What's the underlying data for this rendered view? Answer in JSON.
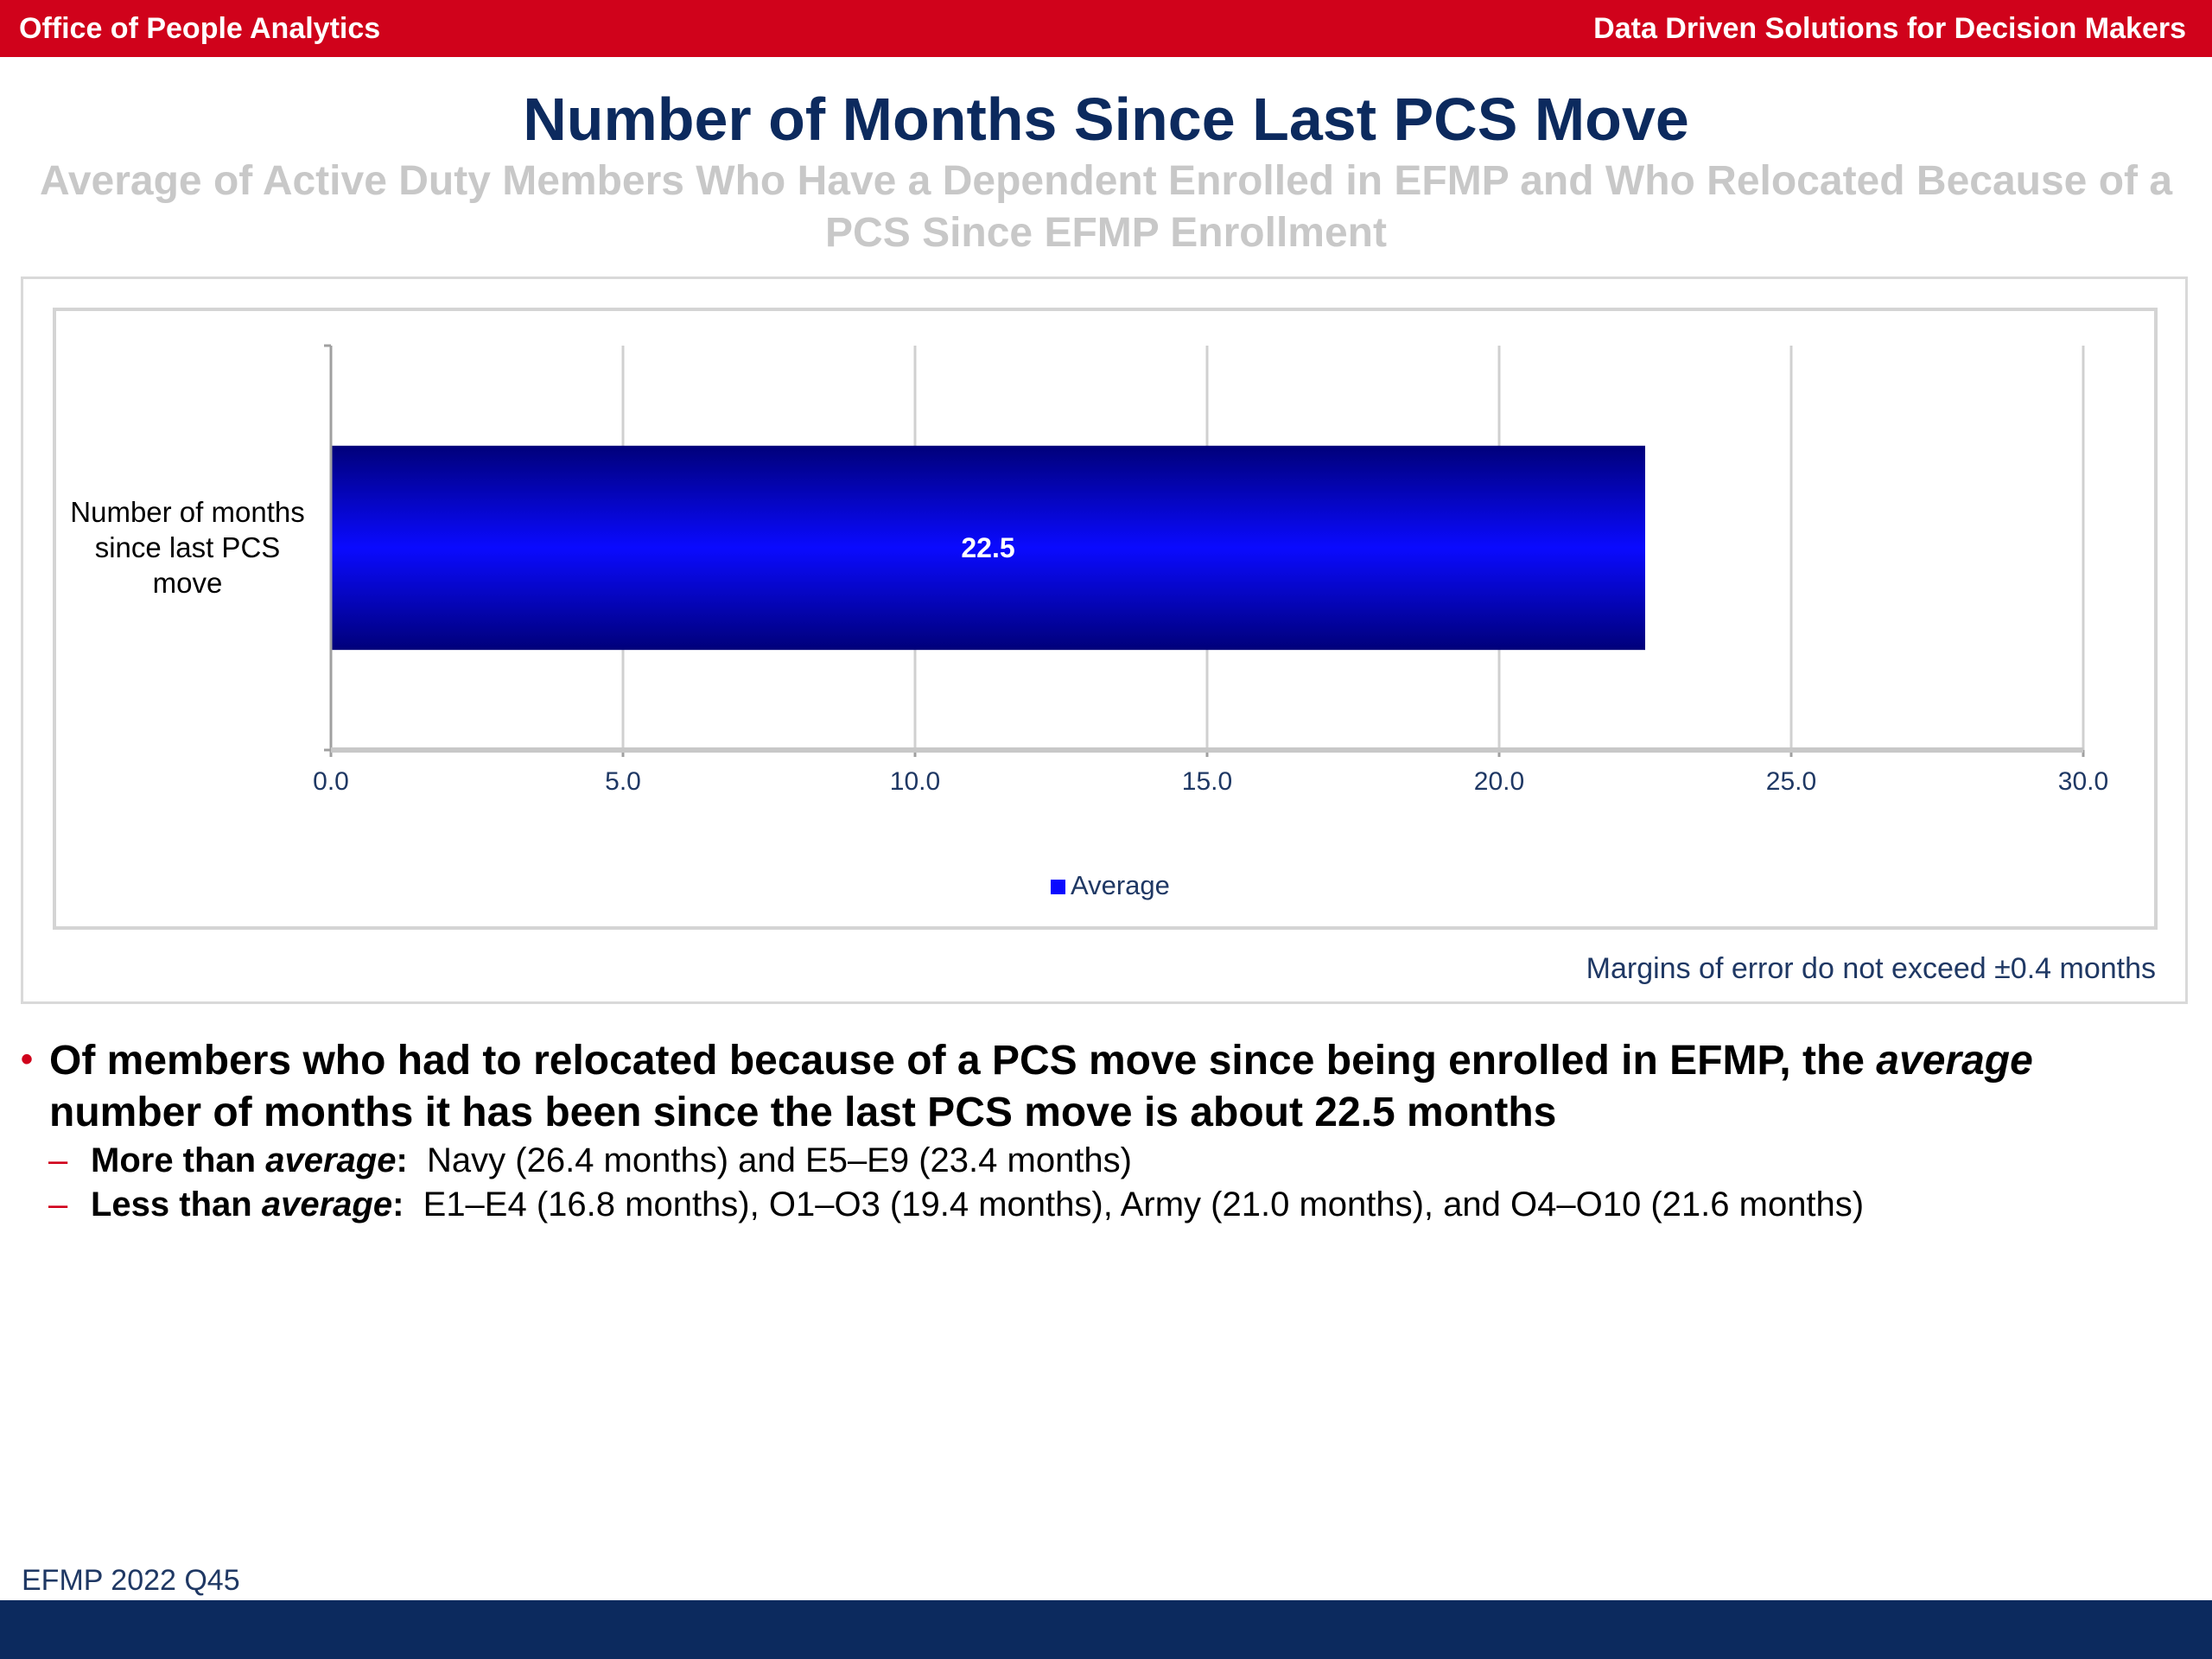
{
  "header": {
    "left": "Office of People Analytics",
    "right": "Data Driven Solutions for Decision Makers"
  },
  "title": "Number of Months Since Last PCS Move",
  "subtitle": "Average of Active Duty Members Who Have a Dependent Enrolled in EFMP and Who Relocated Because of a PCS Since EFMP Enrollment",
  "chart_data": {
    "type": "bar",
    "orientation": "horizontal",
    "categories": [
      "Number of months since last PCS move"
    ],
    "series": [
      {
        "name": "Average",
        "values": [
          22.5
        ],
        "data_labels": [
          "22.5"
        ]
      }
    ],
    "xlim": [
      0,
      30
    ],
    "x_ticks": [
      "0.0",
      "5.0",
      "10.0",
      "15.0",
      "20.0",
      "25.0",
      "30.0"
    ],
    "grid": true,
    "legend_position": "bottom",
    "colors": {
      "bar_edge": "#00007a",
      "bar_center": "#0a0aff",
      "axis_text": "#1f3864",
      "grid": "#d0d0d0"
    }
  },
  "note": "Margins of error do not exceed ±0.4 months",
  "bullets": {
    "main": {
      "text1": "Of members who had to relocated because of a PCS move since being enrolled in EFMP, the ",
      "em": "average",
      "text2": " number of months it has been since the last PCS move is about 22.5 months"
    },
    "sub": [
      {
        "lead": "More than ",
        "em": "average",
        "colon": ":",
        "text": "  Navy (26.4 months) and E5–E9 (23.4 months)"
      },
      {
        "lead": "Less than ",
        "em": "average",
        "colon": ":",
        "text": "  E1–E4 (16.8 months), O1–O3 (19.4 months), Army (21.0 months), and O4–O10 (21.6 months)"
      }
    ]
  },
  "footer": {
    "label": "EFMP 2022 Q45"
  }
}
